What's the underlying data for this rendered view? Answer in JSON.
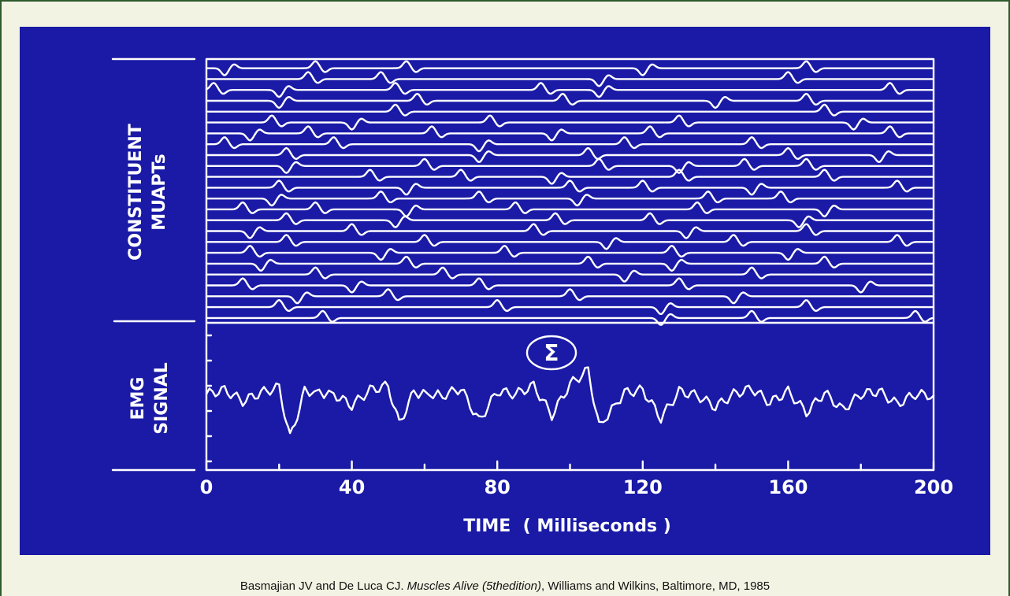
{
  "chart_data": {
    "type": "line",
    "panels": [
      {
        "label_lines": [
          "CONSTITUENT",
          "MUAPTs"
        ],
        "trace_count": 24
      },
      {
        "label_lines": [
          "EMG",
          "SIGNAL"
        ],
        "summation_symbol": "Σ"
      }
    ],
    "xlabel": "TIME  ( Milliseconds )",
    "xlim": [
      0,
      200
    ],
    "x_ticks": [
      0,
      40,
      80,
      120,
      160,
      200
    ],
    "x_tick_labels": [
      "0",
      "40",
      "80",
      "120",
      "160",
      "200"
    ],
    "muapt_firings": [
      [
        5,
        30,
        55,
        120,
        165
      ],
      [
        28,
        48,
        108,
        160
      ],
      [
        2,
        20,
        52,
        92,
        108,
        188
      ],
      [
        20,
        58,
        98,
        140,
        165
      ],
      [
        52,
        170
      ],
      [
        18,
        40,
        78,
        130,
        178
      ],
      [
        12,
        28,
        62,
        95,
        122,
        188
      ],
      [
        5,
        35,
        75,
        115,
        150
      ],
      [
        22,
        75,
        105,
        160,
        185
      ],
      [
        22,
        60,
        108,
        130,
        148,
        165
      ],
      [
        45,
        70,
        95,
        130,
        170
      ],
      [
        20,
        55,
        100,
        120,
        150,
        190
      ],
      [
        18,
        48,
        75,
        102,
        138,
        158
      ],
      [
        10,
        30,
        55,
        85,
        135,
        170
      ],
      [
        22,
        52,
        96,
        122,
        163
      ],
      [
        12,
        40,
        90,
        132,
        165
      ],
      [
        22,
        60,
        110,
        145,
        190
      ],
      [
        12,
        48,
        82,
        128,
        160
      ],
      [
        15,
        55,
        105,
        128,
        170
      ],
      [
        30,
        65,
        115,
        150
      ],
      [
        10,
        40,
        75,
        130,
        180
      ],
      [
        25,
        50,
        100,
        145
      ],
      [
        20,
        80,
        125,
        165
      ],
      [
        32,
        125,
        150,
        195
      ]
    ],
    "emg_signal": {
      "x": [
        0,
        5,
        10,
        15,
        20,
        23,
        27,
        35,
        40,
        45,
        50,
        53,
        57,
        65,
        70,
        75,
        80,
        85,
        90,
        95,
        100,
        105,
        108,
        115,
        120,
        125,
        130,
        135,
        140,
        145,
        150,
        155,
        160,
        165,
        170,
        175,
        180,
        185,
        190,
        195,
        200
      ],
      "y": [
        0.3,
        0.6,
        -0.2,
        0.4,
        0.8,
        -2.8,
        0.5,
        0.3,
        -0.5,
        0.6,
        0.9,
        -1.8,
        0.4,
        0.2,
        0.7,
        -1.6,
        0.5,
        0.3,
        0.9,
        -1.2,
        1.0,
        2.0,
        -2.0,
        0.4,
        0.6,
        -1.4,
        0.5,
        0.2,
        -0.6,
        0.3,
        0.7,
        -0.3,
        0.5,
        -1.0,
        0.4,
        -0.8,
        0.3,
        0.5,
        -0.4,
        0.3,
        0.2
      ]
    }
  },
  "caption": {
    "authors": "Basmajian JV and De Luca CJ. ",
    "title": "Muscles Alive (5thedition)",
    "rest": ", Williams and Wilkins, Baltimore, MD, 1985"
  }
}
